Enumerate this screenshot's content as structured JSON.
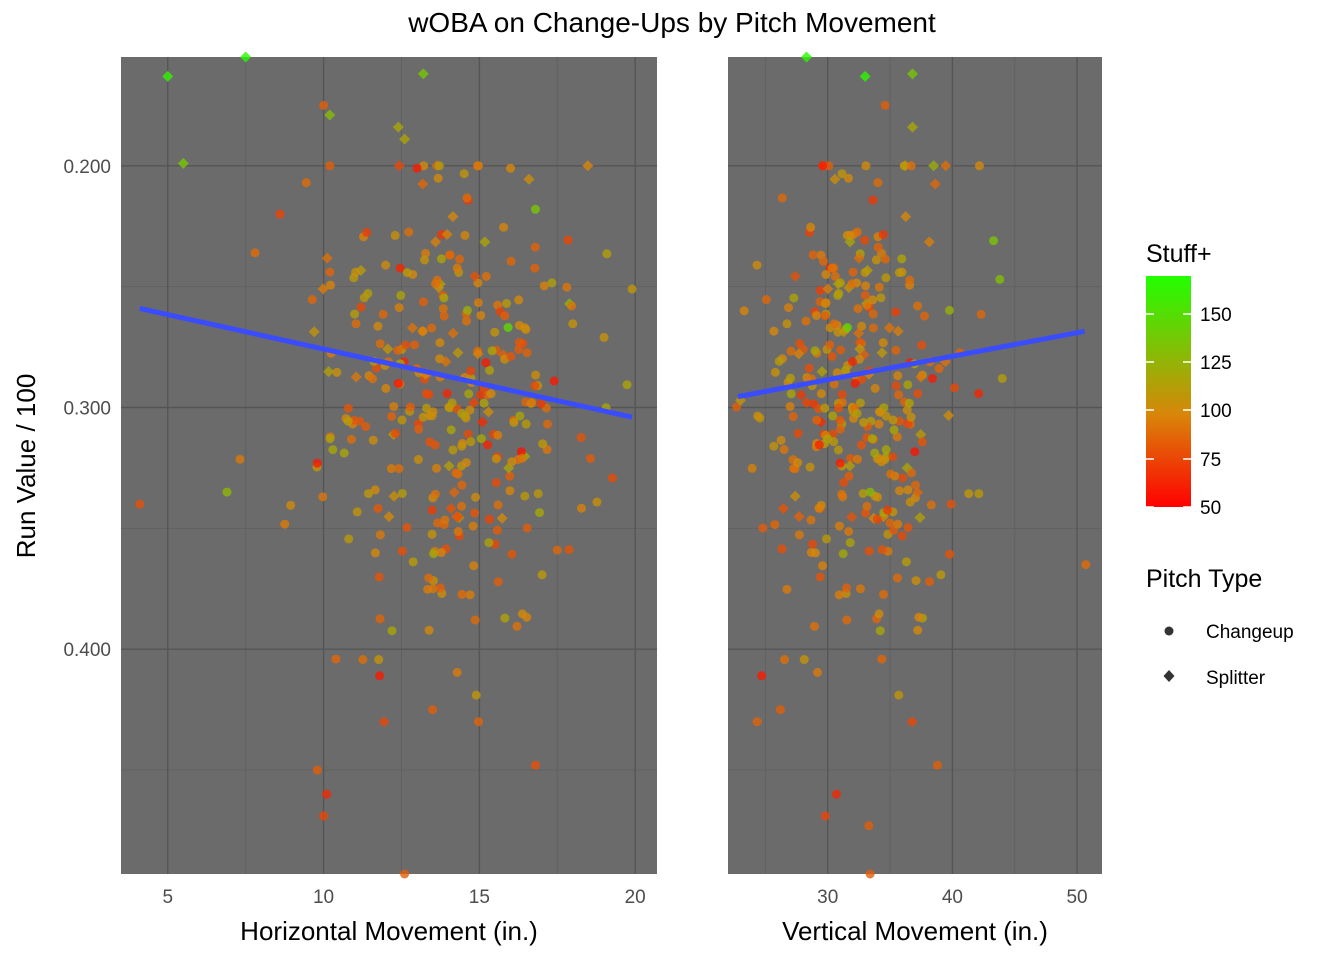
{
  "chart_data": {
    "type": "scatter",
    "title": "wOBA on Change-Ups by Pitch Movement",
    "ylabel": "Run Value / 100",
    "y_reversed": true,
    "ylim": [
      0.155,
      0.493
    ],
    "y_ticks": [
      0.2,
      0.3,
      0.4
    ],
    "y_tick_labels": [
      "0.200",
      "0.300",
      "0.400"
    ],
    "panel_background": "#6b6b6b",
    "grid": true,
    "trend_color": "#3a4cff",
    "color_scale": {
      "title": "Stuff+",
      "domain": [
        50,
        175
      ],
      "colors": [
        "#ff0000",
        "#d8860a",
        "#22ff00"
      ],
      "breaks": [
        50,
        75,
        100,
        125,
        150
      ],
      "break_labels": [
        "50",
        "75",
        "100",
        "125",
        "150"
      ]
    },
    "shape_legend": {
      "title": "Pitch Type",
      "items": [
        {
          "label": "Changeup",
          "shape": "circle"
        },
        {
          "label": "Splitter",
          "shape": "diamond"
        }
      ]
    },
    "panels": [
      {
        "xlabel": "Horizontal Movement (in.)",
        "xlim": [
          3.5,
          20.7
        ],
        "x_ticks": [
          5,
          10,
          15,
          20
        ],
        "x_tick_labels": [
          "5",
          "10",
          "15",
          "20"
        ],
        "trend": {
          "x": [
            4.1,
            19.9
          ],
          "y": [
            0.259,
            0.304
          ]
        },
        "highlight_points": [
          {
            "x": 5.0,
            "y": 0.163,
            "stuff": 168,
            "type": "Splitter"
          },
          {
            "x": 7.5,
            "y": 0.155,
            "stuff": 172,
            "type": "Splitter"
          },
          {
            "x": 13.2,
            "y": 0.162,
            "stuff": 140,
            "type": "Splitter"
          },
          {
            "x": 5.5,
            "y": 0.199,
            "stuff": 140,
            "type": "Splitter"
          },
          {
            "x": 10.0,
            "y": 0.175,
            "stuff": 85,
            "type": "Changeup"
          },
          {
            "x": 10.2,
            "y": 0.179,
            "stuff": 132,
            "type": "Splitter"
          },
          {
            "x": 12.4,
            "y": 0.184,
            "stuff": 120,
            "type": "Splitter"
          },
          {
            "x": 12.6,
            "y": 0.189,
            "stuff": 118,
            "type": "Splitter"
          },
          {
            "x": 16.0,
            "y": 0.201,
            "stuff": 100,
            "type": "Changeup"
          },
          {
            "x": 16.8,
            "y": 0.218,
            "stuff": 140,
            "type": "Changeup"
          },
          {
            "x": 7.8,
            "y": 0.236,
            "stuff": 90,
            "type": "Changeup"
          },
          {
            "x": 13.0,
            "y": 0.201,
            "stuff": 60,
            "type": "Changeup"
          },
          {
            "x": 8.6,
            "y": 0.22,
            "stuff": 75,
            "type": "Changeup"
          },
          {
            "x": 12.4,
            "y": 0.29,
            "stuff": 60,
            "type": "Changeup"
          },
          {
            "x": 17.4,
            "y": 0.289,
            "stuff": 60,
            "type": "Changeup"
          },
          {
            "x": 9.8,
            "y": 0.323,
            "stuff": 60,
            "type": "Changeup"
          },
          {
            "x": 4.1,
            "y": 0.34,
            "stuff": 80,
            "type": "Changeup"
          },
          {
            "x": 6.9,
            "y": 0.335,
            "stuff": 130,
            "type": "Changeup"
          },
          {
            "x": 11.8,
            "y": 0.411,
            "stuff": 60,
            "type": "Changeup"
          },
          {
            "x": 10.1,
            "y": 0.46,
            "stuff": 65,
            "type": "Changeup"
          },
          {
            "x": 10.0,
            "y": 0.469,
            "stuff": 75,
            "type": "Changeup"
          },
          {
            "x": 9.8,
            "y": 0.45,
            "stuff": 85,
            "type": "Changeup"
          },
          {
            "x": 16.8,
            "y": 0.448,
            "stuff": 80,
            "type": "Changeup"
          },
          {
            "x": 12.6,
            "y": 0.493,
            "stuff": 85,
            "type": "Changeup"
          },
          {
            "x": 19.9,
            "y": 0.251,
            "stuff": 110,
            "type": "Changeup"
          },
          {
            "x": 19.0,
            "y": 0.271,
            "stuff": 108,
            "type": "Changeup"
          },
          {
            "x": 17.5,
            "y": 0.359,
            "stuff": 88,
            "type": "Changeup"
          },
          {
            "x": 14.9,
            "y": 0.419,
            "stuff": 110,
            "type": "Changeup"
          },
          {
            "x": 13.5,
            "y": 0.425,
            "stuff": 85,
            "type": "Changeup"
          }
        ]
      },
      {
        "xlabel": "Vertical Movement (in.)",
        "xlim": [
          22.0,
          52.0
        ],
        "x_ticks": [
          30,
          40,
          50
        ],
        "x_tick_labels": [
          "30",
          "40",
          "50"
        ],
        "trend": {
          "x": [
            22.8,
            50.6
          ],
          "y": [
            0.2955,
            0.2685
          ]
        },
        "highlight_points": [
          {
            "x": 28.3,
            "y": 0.155,
            "stuff": 172,
            "type": "Splitter"
          },
          {
            "x": 33.0,
            "y": 0.163,
            "stuff": 170,
            "type": "Splitter"
          },
          {
            "x": 36.8,
            "y": 0.162,
            "stuff": 140,
            "type": "Splitter"
          },
          {
            "x": 34.6,
            "y": 0.175,
            "stuff": 85,
            "type": "Changeup"
          },
          {
            "x": 36.8,
            "y": 0.184,
            "stuff": 120,
            "type": "Splitter"
          },
          {
            "x": 29.6,
            "y": 0.2,
            "stuff": 60,
            "type": "Changeup"
          },
          {
            "x": 38.5,
            "y": 0.2,
            "stuff": 125,
            "type": "Splitter"
          },
          {
            "x": 43.3,
            "y": 0.231,
            "stuff": 138,
            "type": "Changeup"
          },
          {
            "x": 43.8,
            "y": 0.247,
            "stuff": 135,
            "type": "Changeup"
          },
          {
            "x": 44.0,
            "y": 0.288,
            "stuff": 115,
            "type": "Changeup"
          },
          {
            "x": 32.2,
            "y": 0.29,
            "stuff": 60,
            "type": "Changeup"
          },
          {
            "x": 38.4,
            "y": 0.288,
            "stuff": 60,
            "type": "Changeup"
          },
          {
            "x": 31.0,
            "y": 0.323,
            "stuff": 60,
            "type": "Changeup"
          },
          {
            "x": 33.4,
            "y": 0.335,
            "stuff": 130,
            "type": "Changeup"
          },
          {
            "x": 39.9,
            "y": 0.34,
            "stuff": 80,
            "type": "Changeup"
          },
          {
            "x": 50.7,
            "y": 0.365,
            "stuff": 90,
            "type": "Changeup"
          },
          {
            "x": 24.7,
            "y": 0.411,
            "stuff": 60,
            "type": "Changeup"
          },
          {
            "x": 30.7,
            "y": 0.46,
            "stuff": 65,
            "type": "Changeup"
          },
          {
            "x": 29.8,
            "y": 0.469,
            "stuff": 75,
            "type": "Changeup"
          },
          {
            "x": 33.3,
            "y": 0.473,
            "stuff": 85,
            "type": "Changeup"
          },
          {
            "x": 38.8,
            "y": 0.448,
            "stuff": 85,
            "type": "Changeup"
          },
          {
            "x": 35.7,
            "y": 0.419,
            "stuff": 110,
            "type": "Changeup"
          },
          {
            "x": 26.2,
            "y": 0.425,
            "stuff": 85,
            "type": "Changeup"
          },
          {
            "x": 33.4,
            "y": 0.493,
            "stuff": 85,
            "type": "Changeup"
          },
          {
            "x": 23.0,
            "y": 0.297,
            "stuff": 110,
            "type": "Splitter"
          },
          {
            "x": 23.3,
            "y": 0.26,
            "stuff": 100,
            "type": "Changeup"
          }
        ]
      }
    ],
    "cloud": {
      "approx_points": 330,
      "x_center": [
        14.0,
        32.5
      ],
      "x_spread": [
        2.3,
        3.8
      ],
      "y_center": 0.3,
      "y_spread": 0.045,
      "stuff_center": 97,
      "stuff_spread": 14,
      "splitter_share": 0.15
    }
  },
  "legend": {
    "stuff_title": "Stuff+",
    "type_title": "Pitch Type",
    "stuff_labels": [
      "150",
      "125",
      "100",
      "75",
      "50"
    ],
    "type_labels": [
      "Changeup",
      "Splitter"
    ]
  }
}
